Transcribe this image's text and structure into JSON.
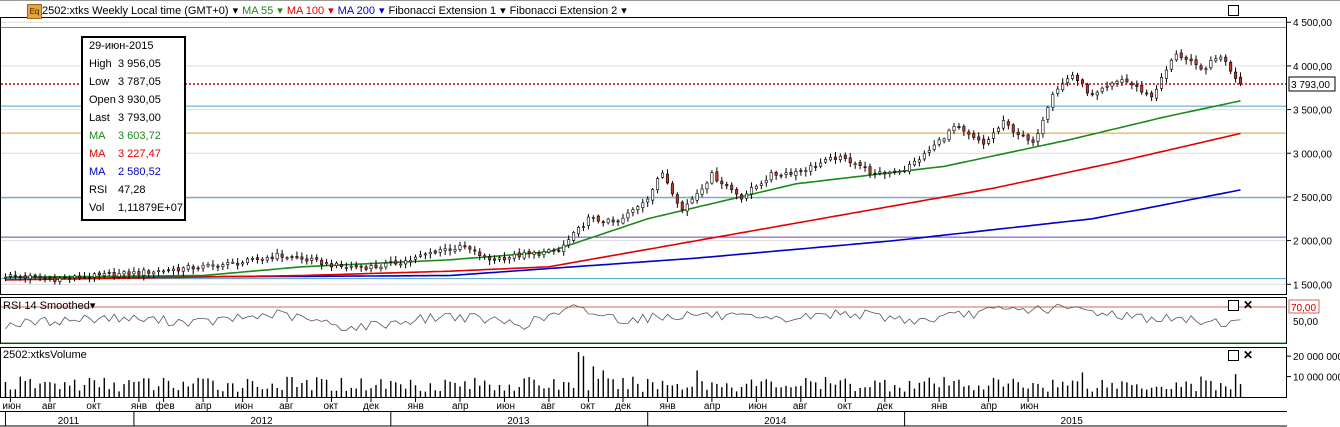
{
  "header": {
    "symbol_label": "2502:xtks Weekly Local time (GMT+0)",
    "ma55_label": "MA 55",
    "ma100_label": "MA 100",
    "ma200_label": "MA 200",
    "fib1_label": "Fibonacci Extension 1",
    "fib2_label": "Fibonacci Extension 2",
    "eq_icon": "Eq"
  },
  "infobox": {
    "date": "29-июн-2015",
    "rows": [
      {
        "k": "High",
        "v": "3 956,05",
        "color": "#000000"
      },
      {
        "k": "Low",
        "v": "3 787,05",
        "color": "#000000"
      },
      {
        "k": "Open",
        "v": "3 930,05",
        "color": "#000000"
      },
      {
        "k": "Last",
        "v": "3 793,00",
        "color": "#000000"
      },
      {
        "k": "MA",
        "v": "3 603,72",
        "color": "#1a8a1a"
      },
      {
        "k": "MA",
        "v": "3 227,47",
        "color": "#e00000"
      },
      {
        "k": "MA",
        "v": "2 580,52",
        "color": "#0000cc"
      },
      {
        "k": "RSI",
        "v": "47,28",
        "color": "#000000"
      },
      {
        "k": "Vol",
        "v": "1,11879E+07",
        "color": "#000000"
      }
    ]
  },
  "rsi_panel": {
    "title": "RSI 14 Smoothed",
    "level_label": "70,00",
    "tick_50": "50,00"
  },
  "volume_panel": {
    "title": "2502:xtksVolume",
    "ticks": [
      "20 000 000",
      "10 000 000"
    ]
  },
  "chart_data": {
    "type": "candlestick",
    "price_axis": {
      "ticks": [
        "4 500,00",
        "4 000,00",
        "3 500,00",
        "3 000,00",
        "2 500,00",
        "2 000,00",
        "1 500,00"
      ],
      "tick_values": [
        4500,
        4000,
        3500,
        3000,
        2500,
        2000,
        1500
      ],
      "ylim": [
        1400,
        4560
      ]
    },
    "last_price": 3793,
    "last_price_label": "3 793,00",
    "horizontal_levels": [
      {
        "value": 4440,
        "color": "#e06060"
      },
      {
        "value": 3540,
        "color": "#4aa0c8"
      },
      {
        "value": 3230,
        "color": "#e09a30"
      },
      {
        "value": 2490,
        "color": "#4aa0c8"
      },
      {
        "value": 2040,
        "color": "#7040c0"
      },
      {
        "value": 1565,
        "color": "#4aa0c8"
      }
    ],
    "close_anchors": [
      [
        0,
        1600
      ],
      [
        10,
        1560
      ],
      [
        20,
        1600
      ],
      [
        30,
        1650
      ],
      [
        40,
        1700
      ],
      [
        48,
        1750
      ],
      [
        55,
        1830
      ],
      [
        62,
        1770
      ],
      [
        68,
        1700
      ],
      [
        75,
        1700
      ],
      [
        82,
        1780
      ],
      [
        88,
        1900
      ],
      [
        93,
        1920
      ],
      [
        98,
        1780
      ],
      [
        105,
        1840
      ],
      [
        112,
        1880
      ],
      [
        118,
        2250
      ],
      [
        124,
        2200
      ],
      [
        130,
        2500
      ],
      [
        133,
        2780
      ],
      [
        137,
        2350
      ],
      [
        143,
        2750
      ],
      [
        149,
        2500
      ],
      [
        155,
        2750
      ],
      [
        161,
        2800
      ],
      [
        168,
        2950
      ],
      [
        172,
        2900
      ],
      [
        176,
        2750
      ],
      [
        182,
        2820
      ],
      [
        186,
        2980
      ],
      [
        192,
        3300
      ],
      [
        198,
        3100
      ],
      [
        202,
        3350
      ],
      [
        208,
        3100
      ],
      [
        212,
        3700
      ],
      [
        216,
        3900
      ],
      [
        220,
        3650
      ],
      [
        226,
        3850
      ],
      [
        232,
        3650
      ],
      [
        237,
        4150
      ],
      [
        242,
        3950
      ],
      [
        246,
        4120
      ],
      [
        250,
        3793
      ]
    ],
    "ma55_anchors": [
      [
        0,
        1580
      ],
      [
        40,
        1600
      ],
      [
        60,
        1700
      ],
      [
        90,
        1780
      ],
      [
        110,
        1870
      ],
      [
        130,
        2250
      ],
      [
        160,
        2650
      ],
      [
        190,
        2850
      ],
      [
        215,
        3150
      ],
      [
        235,
        3420
      ],
      [
        250,
        3600
      ]
    ],
    "ma100_anchors": [
      [
        0,
        1550
      ],
      [
        60,
        1600
      ],
      [
        90,
        1650
      ],
      [
        110,
        1700
      ],
      [
        140,
        2000
      ],
      [
        170,
        2300
      ],
      [
        200,
        2600
      ],
      [
        225,
        2900
      ],
      [
        250,
        3227
      ]
    ],
    "ma200_anchors": [
      [
        0,
        1580
      ],
      [
        60,
        1590
      ],
      [
        90,
        1600
      ],
      [
        140,
        1800
      ],
      [
        180,
        2000
      ],
      [
        220,
        2250
      ],
      [
        250,
        2580
      ]
    ],
    "rsi_anchors": [
      [
        0,
        45
      ],
      [
        20,
        55
      ],
      [
        40,
        48
      ],
      [
        55,
        60
      ],
      [
        70,
        40
      ],
      [
        90,
        58
      ],
      [
        105,
        45
      ],
      [
        115,
        68
      ],
      [
        125,
        52
      ],
      [
        140,
        60
      ],
      [
        155,
        50
      ],
      [
        170,
        62
      ],
      [
        185,
        50
      ],
      [
        200,
        65
      ],
      [
        215,
        68
      ],
      [
        230,
        55
      ],
      [
        250,
        47
      ]
    ],
    "rsi_range": [
      20,
      80
    ],
    "volume_axis": {
      "max": 23000000
    },
    "volume_spike_weeks": [
      [
        116,
        22000000
      ],
      [
        117,
        20000000
      ],
      [
        119,
        15000000
      ],
      [
        121,
        13000000
      ],
      [
        140,
        13000000
      ],
      [
        218,
        12000000
      ],
      [
        242,
        10000000
      ],
      [
        249,
        11187900
      ]
    ],
    "time_axis": {
      "months": [
        {
          "w": 1,
          "label": "июн"
        },
        {
          "w": 9,
          "label": "авг"
        },
        {
          "w": 18,
          "label": "окт"
        },
        {
          "w": 27,
          "label": "янв"
        },
        {
          "w": 32,
          "label": "фев"
        },
        {
          "w": 40,
          "label": "апр"
        },
        {
          "w": 48,
          "label": "июн"
        },
        {
          "w": 57,
          "label": "авг"
        },
        {
          "w": 66,
          "label": "окт"
        },
        {
          "w": 74,
          "label": "дек"
        },
        {
          "w": 83,
          "label": "янв"
        },
        {
          "w": 92,
          "label": "апр"
        },
        {
          "w": 101,
          "label": "июн"
        },
        {
          "w": 110,
          "label": "авг"
        },
        {
          "w": 118,
          "label": "окт"
        },
        {
          "w": 125,
          "label": "дек"
        },
        {
          "w": 134,
          "label": "янв"
        },
        {
          "w": 143,
          "label": "апр"
        },
        {
          "w": 152,
          "label": "июн"
        },
        {
          "w": 161,
          "label": "авг"
        },
        {
          "w": 170,
          "label": "окт"
        },
        {
          "w": 178,
          "label": "дек"
        },
        {
          "w": 189,
          "label": "янв"
        },
        {
          "w": 199,
          "label": "апр"
        },
        {
          "w": 207,
          "label": "июн"
        }
      ],
      "years": [
        {
          "label": "2011",
          "start": 0,
          "end": 26
        },
        {
          "label": "2012",
          "start": 26,
          "end": 78
        },
        {
          "label": "2013",
          "start": 78,
          "end": 130
        },
        {
          "label": "2014",
          "start": 130,
          "end": 182
        },
        {
          "label": "2015",
          "start": 182,
          "end": 250
        }
      ],
      "weeks_total": 251
    },
    "colors": {
      "up": "#ffffff",
      "down": "#c0392b",
      "ma55": "#1a8a1a",
      "ma100": "#e00000",
      "ma200": "#0000cc",
      "last_price": "#c00000"
    }
  }
}
